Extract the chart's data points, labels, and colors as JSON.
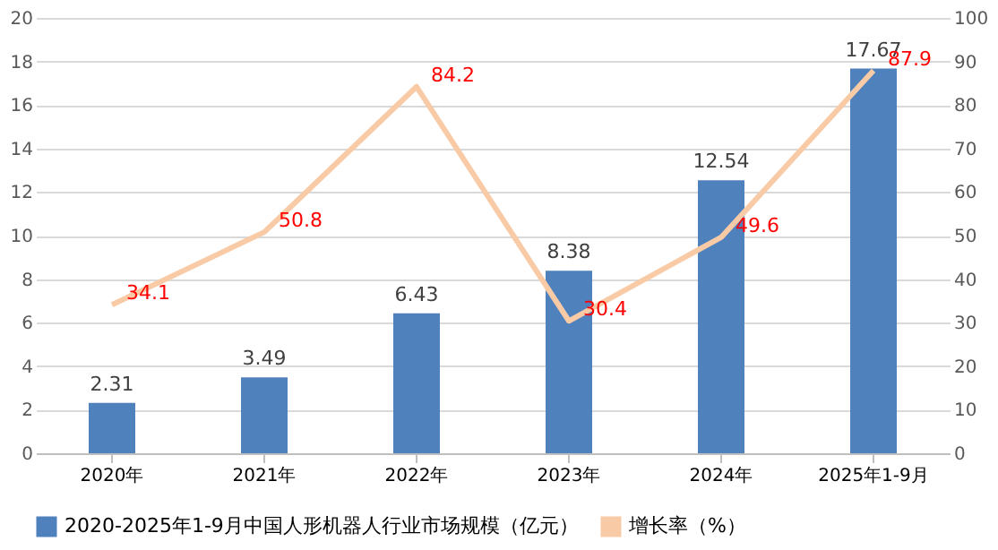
{
  "chart_data": {
    "type": "bar",
    "categories": [
      "2020年",
      "2021年",
      "2022年",
      "2023年",
      "2024年",
      "2025年1-9月"
    ],
    "series": [
      {
        "name": "2020-2025年1-9月中国人形机器人行业市场规模（亿元）",
        "color": "#4f81bd",
        "values": [
          2.31,
          3.49,
          6.43,
          8.38,
          12.54,
          17.67
        ]
      },
      {
        "name": "增长率（%）",
        "type": "line",
        "axis": "y2",
        "color": "#f8cba6",
        "values": [
          34.1,
          50.8,
          84.2,
          30.4,
          49.6,
          87.9
        ]
      }
    ],
    "ylim": [
      0,
      20
    ],
    "yticks": [
      0,
      2,
      4,
      6,
      8,
      10,
      12,
      14,
      16,
      18,
      20
    ],
    "y2lim": [
      0,
      100
    ],
    "y2ticks": [
      0,
      10,
      20,
      30,
      40,
      50,
      60,
      70,
      80,
      90,
      100
    ],
    "data_labels": true,
    "grid": "y",
    "legend": "bottom",
    "marker": "none"
  }
}
